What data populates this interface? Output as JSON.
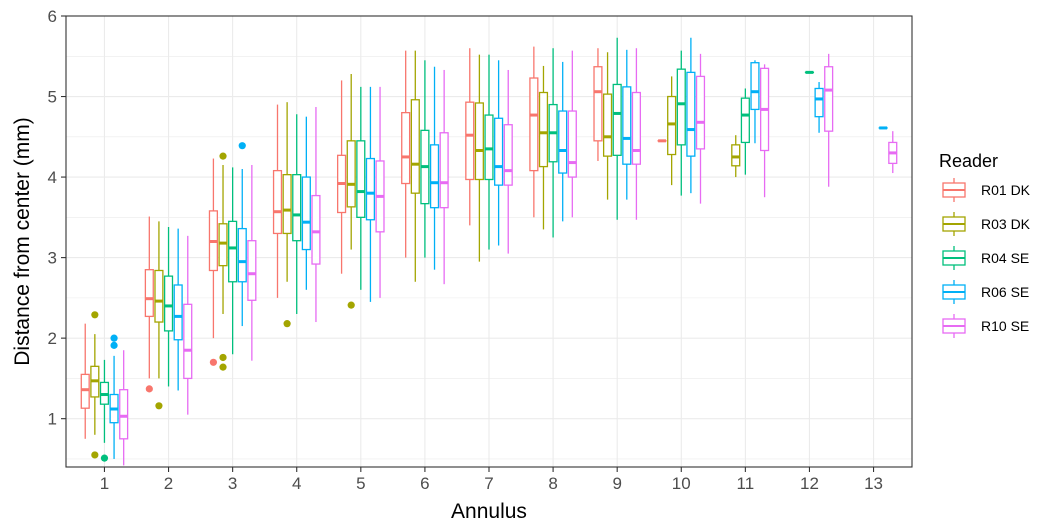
{
  "chart_data": {
    "type": "boxplot",
    "xlabel": "Annulus",
    "ylabel": "Distance from center (mm)",
    "ylim": [
      0.4,
      6.0
    ],
    "y_ticks": [
      1,
      2,
      3,
      4,
      5,
      6
    ],
    "categories": [
      "1",
      "2",
      "3",
      "4",
      "5",
      "6",
      "7",
      "8",
      "9",
      "10",
      "11",
      "12",
      "13"
    ],
    "grid": "on",
    "legend": {
      "title": "Reader",
      "position": "right"
    },
    "series": [
      {
        "name": "R01 DK",
        "color": "#F8766D",
        "boxes": [
          {
            "x": "1",
            "whisker_low": 0.75,
            "q1": 1.13,
            "median": 1.36,
            "q3": 1.55,
            "whisker_high": 2.18,
            "outliers": []
          },
          {
            "x": "2",
            "whisker_low": 1.5,
            "q1": 2.27,
            "median": 2.49,
            "q3": 2.85,
            "whisker_high": 3.51,
            "outliers": [
              1.37
            ]
          },
          {
            "x": "3",
            "whisker_low": 2.0,
            "q1": 2.84,
            "median": 3.2,
            "q3": 3.58,
            "whisker_high": 4.23,
            "outliers": [
              1.7
            ]
          },
          {
            "x": "4",
            "whisker_low": 2.5,
            "q1": 3.3,
            "median": 3.57,
            "q3": 4.08,
            "whisker_high": 4.9,
            "outliers": []
          },
          {
            "x": "5",
            "whisker_low": 2.8,
            "q1": 3.56,
            "median": 3.92,
            "q3": 4.27,
            "whisker_high": 5.2,
            "outliers": []
          },
          {
            "x": "6",
            "whisker_low": 3.0,
            "q1": 3.92,
            "median": 4.25,
            "q3": 4.8,
            "whisker_high": 5.57,
            "outliers": []
          },
          {
            "x": "7",
            "whisker_low": 3.4,
            "q1": 3.97,
            "median": 4.52,
            "q3": 4.93,
            "whisker_high": 5.6,
            "outliers": []
          },
          {
            "x": "8",
            "whisker_low": 3.5,
            "q1": 4.08,
            "median": 4.77,
            "q3": 5.23,
            "whisker_high": 5.62,
            "outliers": []
          },
          {
            "x": "9",
            "whisker_low": 4.2,
            "q1": 4.45,
            "median": 5.06,
            "q3": 5.37,
            "whisker_high": 5.6,
            "outliers": []
          },
          {
            "x": "10",
            "whisker_low": 4.45,
            "q1": 4.45,
            "median": 4.45,
            "q3": 4.45,
            "whisker_high": 4.45,
            "outliers": []
          }
        ]
      },
      {
        "name": "R03 DK",
        "color": "#A3A500",
        "boxes": [
          {
            "x": "1",
            "whisker_low": 0.8,
            "q1": 1.27,
            "median": 1.47,
            "q3": 1.65,
            "whisker_high": 2.05,
            "outliers": [
              0.55,
              2.29
            ]
          },
          {
            "x": "2",
            "whisker_low": 1.5,
            "q1": 2.2,
            "median": 2.46,
            "q3": 2.84,
            "whisker_high": 3.45,
            "outliers": [
              1.16
            ]
          },
          {
            "x": "3",
            "whisker_low": 2.3,
            "q1": 2.9,
            "median": 3.18,
            "q3": 3.42,
            "whisker_high": 4.15,
            "outliers": [
              1.64,
              1.76,
              4.26
            ]
          },
          {
            "x": "4",
            "whisker_low": 2.7,
            "q1": 3.3,
            "median": 3.59,
            "q3": 4.03,
            "whisker_high": 4.93,
            "outliers": [
              2.18
            ]
          },
          {
            "x": "5",
            "whisker_low": 3.1,
            "q1": 3.63,
            "median": 3.91,
            "q3": 4.45,
            "whisker_high": 5.28,
            "outliers": [
              2.41
            ]
          },
          {
            "x": "6",
            "whisker_low": 2.7,
            "q1": 3.8,
            "median": 4.16,
            "q3": 4.96,
            "whisker_high": 5.57,
            "outliers": []
          },
          {
            "x": "7",
            "whisker_low": 2.95,
            "q1": 3.97,
            "median": 4.33,
            "q3": 4.92,
            "whisker_high": 5.52,
            "outliers": []
          },
          {
            "x": "8",
            "whisker_low": 3.35,
            "q1": 4.13,
            "median": 4.55,
            "q3": 5.05,
            "whisker_high": 5.38,
            "outliers": []
          },
          {
            "x": "9",
            "whisker_low": 3.72,
            "q1": 4.26,
            "median": 4.5,
            "q3": 5.03,
            "whisker_high": 5.55,
            "outliers": []
          },
          {
            "x": "10",
            "whisker_low": 3.9,
            "q1": 4.28,
            "median": 4.66,
            "q3": 5.0,
            "whisker_high": 5.25,
            "outliers": []
          },
          {
            "x": "11",
            "whisker_low": 4.0,
            "q1": 4.14,
            "median": 4.25,
            "q3": 4.4,
            "whisker_high": 4.52,
            "outliers": []
          }
        ]
      },
      {
        "name": "R04 SE",
        "color": "#00BF7D",
        "boxes": [
          {
            "x": "1",
            "whisker_low": 0.7,
            "q1": 1.18,
            "median": 1.3,
            "q3": 1.45,
            "whisker_high": 1.73,
            "outliers": [
              0.51
            ]
          },
          {
            "x": "2",
            "whisker_low": 1.4,
            "q1": 2.09,
            "median": 2.4,
            "q3": 2.77,
            "whisker_high": 3.38,
            "outliers": []
          },
          {
            "x": "3",
            "whisker_low": 1.8,
            "q1": 2.7,
            "median": 3.12,
            "q3": 3.45,
            "whisker_high": 4.12,
            "outliers": []
          },
          {
            "x": "4",
            "whisker_low": 2.3,
            "q1": 3.21,
            "median": 3.53,
            "q3": 4.03,
            "whisker_high": 4.78,
            "outliers": []
          },
          {
            "x": "5",
            "whisker_low": 2.6,
            "q1": 3.5,
            "median": 3.82,
            "q3": 4.45,
            "whisker_high": 5.12,
            "outliers": []
          },
          {
            "x": "6",
            "whisker_low": 3.0,
            "q1": 3.67,
            "median": 4.13,
            "q3": 4.58,
            "whisker_high": 5.45,
            "outliers": []
          },
          {
            "x": "7",
            "whisker_low": 3.1,
            "q1": 3.97,
            "median": 4.35,
            "q3": 4.77,
            "whisker_high": 5.52,
            "outliers": []
          },
          {
            "x": "8",
            "whisker_low": 3.25,
            "q1": 4.19,
            "median": 4.55,
            "q3": 4.9,
            "whisker_high": 5.6,
            "outliers": []
          },
          {
            "x": "9",
            "whisker_low": 3.47,
            "q1": 4.27,
            "median": 4.79,
            "q3": 5.15,
            "whisker_high": 5.73,
            "outliers": []
          },
          {
            "x": "10",
            "whisker_low": 3.77,
            "q1": 4.4,
            "median": 4.91,
            "q3": 5.34,
            "whisker_high": 5.57,
            "outliers": []
          },
          {
            "x": "11",
            "whisker_low": 4.03,
            "q1": 4.43,
            "median": 4.77,
            "q3": 4.98,
            "whisker_high": 5.1,
            "outliers": []
          },
          {
            "x": "12",
            "whisker_low": 5.3,
            "q1": 5.3,
            "median": 5.3,
            "q3": 5.3,
            "whisker_high": 5.3,
            "outliers": []
          }
        ]
      },
      {
        "name": "R06 SE",
        "color": "#00B0F6",
        "boxes": [
          {
            "x": "1",
            "whisker_low": 0.5,
            "q1": 0.95,
            "median": 1.12,
            "q3": 1.3,
            "whisker_high": 1.78,
            "outliers": [
              1.91,
              2.0
            ]
          },
          {
            "x": "2",
            "whisker_low": 1.35,
            "q1": 1.98,
            "median": 2.27,
            "q3": 2.66,
            "whisker_high": 3.36,
            "outliers": []
          },
          {
            "x": "3",
            "whisker_low": 2.15,
            "q1": 2.7,
            "median": 2.95,
            "q3": 3.36,
            "whisker_high": 4.1,
            "outliers": [
              4.39
            ]
          },
          {
            "x": "4",
            "whisker_low": 2.6,
            "q1": 3.1,
            "median": 3.44,
            "q3": 4.0,
            "whisker_high": 4.75,
            "outliers": []
          },
          {
            "x": "5",
            "whisker_low": 2.45,
            "q1": 3.47,
            "median": 3.8,
            "q3": 4.23,
            "whisker_high": 5.12,
            "outliers": []
          },
          {
            "x": "6",
            "whisker_low": 2.85,
            "q1": 3.62,
            "median": 3.93,
            "q3": 4.4,
            "whisker_high": 5.37,
            "outliers": []
          },
          {
            "x": "7",
            "whisker_low": 3.15,
            "q1": 3.9,
            "median": 4.13,
            "q3": 4.73,
            "whisker_high": 5.45,
            "outliers": []
          },
          {
            "x": "8",
            "whisker_low": 3.45,
            "q1": 4.05,
            "median": 4.33,
            "q3": 4.82,
            "whisker_high": 5.43,
            "outliers": []
          },
          {
            "x": "9",
            "whisker_low": 3.72,
            "q1": 4.16,
            "median": 4.48,
            "q3": 5.12,
            "whisker_high": 5.58,
            "outliers": []
          },
          {
            "x": "10",
            "whisker_low": 3.8,
            "q1": 4.26,
            "median": 4.59,
            "q3": 5.3,
            "whisker_high": 5.73,
            "outliers": []
          },
          {
            "x": "11",
            "whisker_low": 4.42,
            "q1": 4.84,
            "median": 5.06,
            "q3": 5.42,
            "whisker_high": 5.45,
            "outliers": []
          },
          {
            "x": "12",
            "whisker_low": 4.55,
            "q1": 4.75,
            "median": 4.97,
            "q3": 5.1,
            "whisker_high": 5.18,
            "outliers": []
          },
          {
            "x": "13",
            "whisker_low": 4.61,
            "q1": 4.61,
            "median": 4.61,
            "q3": 4.61,
            "whisker_high": 4.61,
            "outliers": []
          }
        ]
      },
      {
        "name": "R10 SE",
        "color": "#E76BF3",
        "boxes": [
          {
            "x": "1",
            "whisker_low": 0.42,
            "q1": 0.75,
            "median": 1.03,
            "q3": 1.36,
            "whisker_high": 1.85,
            "outliers": []
          },
          {
            "x": "2",
            "whisker_low": 1.05,
            "q1": 1.5,
            "median": 1.85,
            "q3": 2.42,
            "whisker_high": 3.27,
            "outliers": []
          },
          {
            "x": "3",
            "whisker_low": 1.72,
            "q1": 2.47,
            "median": 2.8,
            "q3": 3.21,
            "whisker_high": 4.15,
            "outliers": []
          },
          {
            "x": "4",
            "whisker_low": 2.2,
            "q1": 2.92,
            "median": 3.32,
            "q3": 3.77,
            "whisker_high": 4.87,
            "outliers": []
          },
          {
            "x": "5",
            "whisker_low": 2.5,
            "q1": 3.32,
            "median": 3.76,
            "q3": 4.2,
            "whisker_high": 5.12,
            "outliers": []
          },
          {
            "x": "6",
            "whisker_low": 2.67,
            "q1": 3.62,
            "median": 3.93,
            "q3": 4.55,
            "whisker_high": 5.33,
            "outliers": []
          },
          {
            "x": "7",
            "whisker_low": 3.05,
            "q1": 3.9,
            "median": 4.08,
            "q3": 4.65,
            "whisker_high": 5.33,
            "outliers": []
          },
          {
            "x": "8",
            "whisker_low": 3.5,
            "q1": 4.0,
            "median": 4.18,
            "q3": 4.82,
            "whisker_high": 5.57,
            "outliers": []
          },
          {
            "x": "9",
            "whisker_low": 3.47,
            "q1": 4.16,
            "median": 4.33,
            "q3": 5.05,
            "whisker_high": 5.6,
            "outliers": []
          },
          {
            "x": "10",
            "whisker_low": 3.67,
            "q1": 4.35,
            "median": 4.68,
            "q3": 5.25,
            "whisker_high": 5.53,
            "outliers": []
          },
          {
            "x": "11",
            "whisker_low": 3.75,
            "q1": 4.33,
            "median": 4.84,
            "q3": 5.35,
            "whisker_high": 5.4,
            "outliers": []
          },
          {
            "x": "12",
            "whisker_low": 3.88,
            "q1": 4.57,
            "median": 5.08,
            "q3": 5.37,
            "whisker_high": 5.53,
            "outliers": []
          },
          {
            "x": "13",
            "whisker_low": 4.05,
            "q1": 4.17,
            "median": 4.3,
            "q3": 4.43,
            "whisker_high": 4.57,
            "outliers": []
          }
        ]
      }
    ]
  }
}
